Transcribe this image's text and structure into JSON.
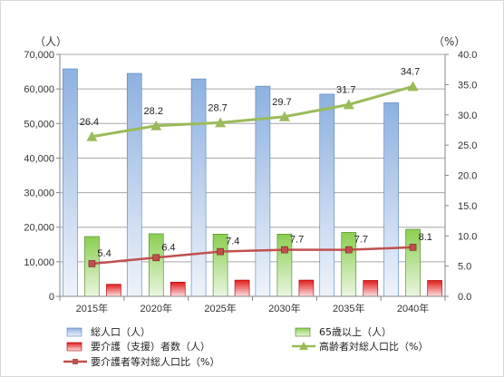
{
  "chart_data": {
    "type": "bar",
    "categories": [
      "2015年",
      "2020年",
      "2025年",
      "2030年",
      "2035年",
      "2040年"
    ],
    "y_left": {
      "unit": "（人）",
      "range": [
        0,
        70000
      ],
      "ticks": [
        "0",
        "10,000",
        "20,000",
        "30,000",
        "40,000",
        "50,000",
        "60,000",
        "70,000"
      ]
    },
    "y_right": {
      "unit": "（%）",
      "range": [
        0,
        40
      ],
      "ticks": [
        "0.0",
        "5.0",
        "10.0",
        "15.0",
        "20.0",
        "25.0",
        "30.0",
        "35.0",
        "40.0"
      ]
    },
    "series": [
      {
        "name": "総人口（人）",
        "kind": "bar",
        "axis": "left",
        "color": "#95b3d7",
        "values": [
          65800,
          64500,
          62900,
          60800,
          58500,
          56000
        ]
      },
      {
        "name": "65歳以上（人）",
        "kind": "bar",
        "axis": "left",
        "color": "#92d050",
        "values": [
          17300,
          18100,
          18000,
          18000,
          18500,
          19400
        ]
      },
      {
        "name": "要介護（支援）者数（人）",
        "kind": "bar",
        "axis": "left",
        "color": "#ff0000",
        "values": [
          3500,
          4100,
          4700,
          4700,
          4600,
          4600
        ]
      },
      {
        "name": "高齢者対総人口比（%）",
        "kind": "line",
        "axis": "right",
        "color": "#9bbb59",
        "marker": "triangle",
        "values": [
          26.4,
          28.2,
          28.7,
          29.7,
          31.7,
          34.7
        ],
        "labels": [
          "26.4",
          "28.2",
          "28.7",
          "29.7",
          "31.7",
          "34.7"
        ]
      },
      {
        "name": "要介護者等対総人口比（%）",
        "kind": "line",
        "axis": "right",
        "color": "#c0504d",
        "marker": "square",
        "values": [
          5.4,
          6.4,
          7.4,
          7.7,
          7.7,
          8.1
        ],
        "labels": [
          "5.4",
          "6.4",
          "7.4",
          "7.7",
          "7.7",
          "8.1"
        ]
      }
    ],
    "grid": true,
    "legend_position": "bottom"
  }
}
